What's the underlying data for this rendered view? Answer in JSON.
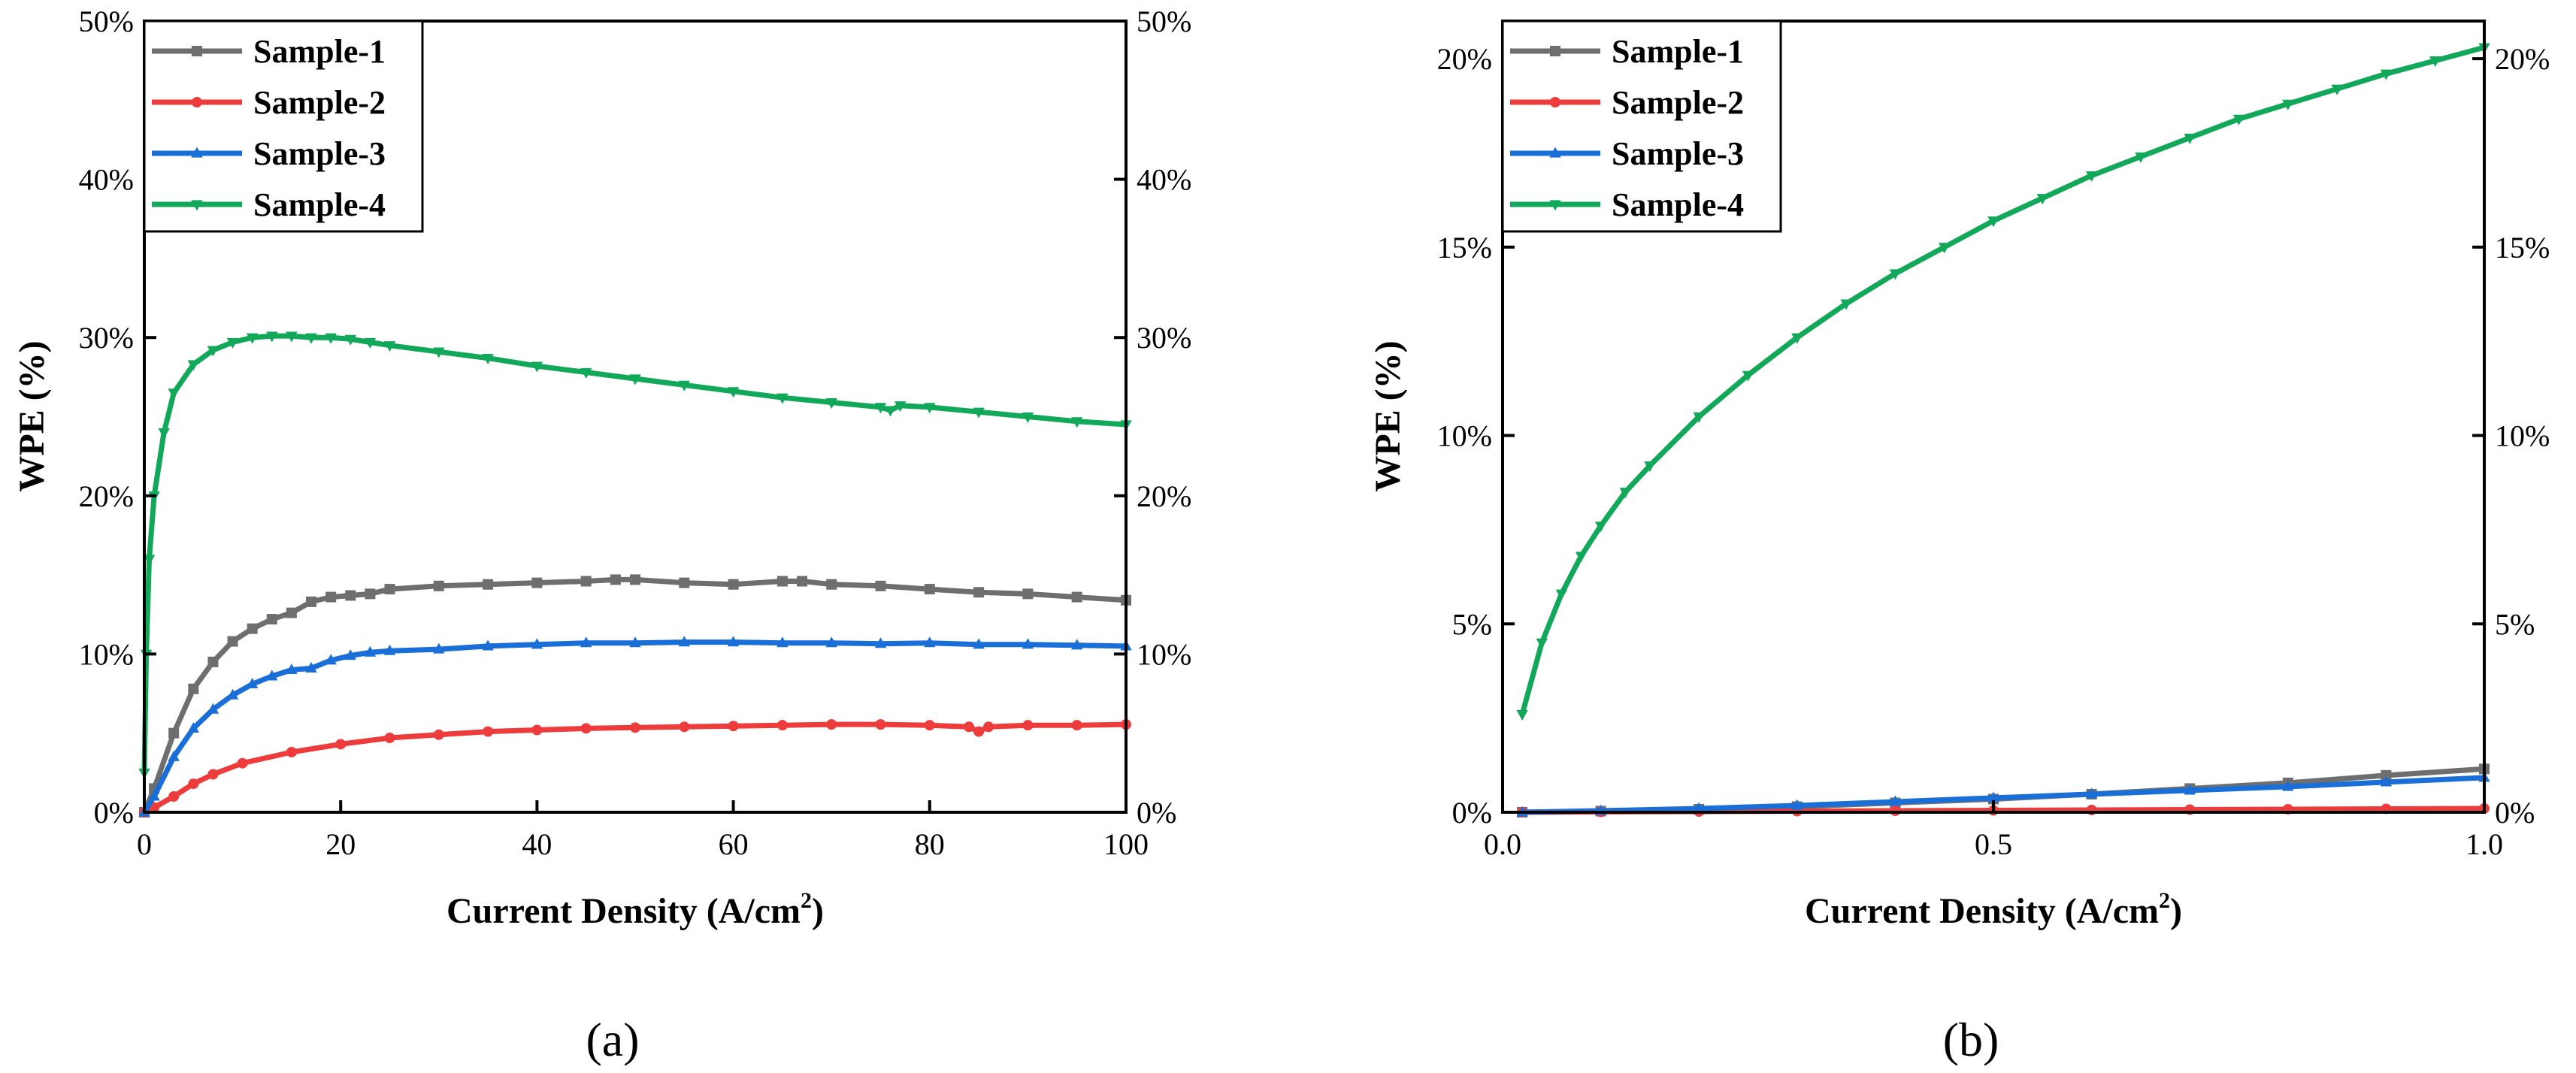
{
  "colors": {
    "Sample-1": "#6e6e6e",
    "Sample-2": "#ee3b3b",
    "Sample-3": "#1a6ed8",
    "Sample-4": "#12a85a",
    "axis": "#000000"
  },
  "chart_data": [
    {
      "panel": "(a)",
      "type": "line",
      "xlabel_main": "Current Density (A/cm",
      "xlabel_sup": "2",
      "xlabel_end": ")",
      "ylabel": "WPE (%)",
      "xlim": [
        0,
        100
      ],
      "ylim": [
        0,
        50
      ],
      "xticks": [
        0,
        20,
        40,
        60,
        80,
        100
      ],
      "xtick_labels": [
        "0",
        "20",
        "40",
        "60",
        "80",
        "100"
      ],
      "yticks": [
        0,
        10,
        20,
        30,
        40,
        50
      ],
      "ytick_labels": [
        "0%",
        "10%",
        "20%",
        "30%",
        "40%",
        "50%"
      ],
      "legend_position": "top-left",
      "series": [
        {
          "name": "Sample-1",
          "marker": "square",
          "x": [
            0,
            1,
            3,
            5,
            7,
            9,
            11,
            13,
            15,
            17,
            19,
            21,
            23,
            25,
            30,
            35,
            40,
            45,
            48,
            50,
            55,
            60,
            65,
            67,
            70,
            75,
            80,
            85,
            90,
            95,
            100
          ],
          "y": [
            0,
            1.5,
            5.0,
            7.8,
            9.5,
            10.8,
            11.6,
            12.2,
            12.6,
            13.3,
            13.6,
            13.7,
            13.8,
            14.1,
            14.3,
            14.4,
            14.5,
            14.6,
            14.7,
            14.7,
            14.5,
            14.4,
            14.6,
            14.6,
            14.4,
            14.3,
            14.1,
            13.9,
            13.8,
            13.6,
            13.4
          ]
        },
        {
          "name": "Sample-2",
          "marker": "circle",
          "x": [
            0,
            1,
            3,
            5,
            7,
            10,
            15,
            20,
            25,
            30,
            35,
            40,
            45,
            50,
            55,
            60,
            65,
            70,
            75,
            80,
            84,
            85,
            86,
            90,
            95,
            100
          ],
          "y": [
            0,
            0.3,
            1.0,
            1.8,
            2.4,
            3.1,
            3.8,
            4.3,
            4.7,
            4.9,
            5.1,
            5.2,
            5.3,
            5.35,
            5.4,
            5.45,
            5.5,
            5.55,
            5.55,
            5.5,
            5.4,
            5.1,
            5.4,
            5.5,
            5.5,
            5.55
          ]
        },
        {
          "name": "Sample-3",
          "marker": "triangle-up",
          "x": [
            0,
            1,
            3,
            5,
            7,
            9,
            11,
            13,
            15,
            17,
            19,
            21,
            23,
            25,
            30,
            35,
            40,
            45,
            50,
            55,
            60,
            65,
            70,
            75,
            80,
            85,
            90,
            95,
            100
          ],
          "y": [
            0,
            1.0,
            3.5,
            5.3,
            6.5,
            7.4,
            8.1,
            8.6,
            9.0,
            9.1,
            9.6,
            9.9,
            10.1,
            10.2,
            10.3,
            10.5,
            10.6,
            10.7,
            10.7,
            10.75,
            10.75,
            10.7,
            10.7,
            10.65,
            10.7,
            10.6,
            10.6,
            10.55,
            10.5
          ]
        },
        {
          "name": "Sample-4",
          "marker": "triangle-down",
          "x": [
            0,
            0.2,
            0.5,
            1,
            2,
            3,
            5,
            7,
            9,
            11,
            13,
            15,
            17,
            19,
            21,
            23,
            25,
            30,
            35,
            40,
            45,
            50,
            55,
            60,
            65,
            70,
            75,
            76,
            77,
            80,
            85,
            90,
            95,
            100
          ],
          "y": [
            2.5,
            10,
            16,
            20.0,
            24.0,
            26.5,
            28.3,
            29.2,
            29.7,
            30.0,
            30.1,
            30.1,
            30.0,
            30.0,
            29.9,
            29.7,
            29.5,
            29.1,
            28.7,
            28.2,
            27.8,
            27.4,
            27.0,
            26.6,
            26.2,
            25.9,
            25.6,
            25.4,
            25.7,
            25.6,
            25.3,
            25.0,
            24.7,
            24.5
          ]
        }
      ]
    },
    {
      "panel": "(b)",
      "type": "line",
      "xlabel_main": "Current Density (A/cm",
      "xlabel_sup": "2",
      "xlabel_end": ")",
      "ylabel": "WPE (%)",
      "xlim": [
        0,
        1.0
      ],
      "ylim": [
        0,
        21
      ],
      "xticks": [
        0,
        0.5,
        1.0
      ],
      "xtick_labels": [
        "0.0",
        "0.5",
        "1.0"
      ],
      "yticks": [
        0,
        5,
        10,
        15,
        20
      ],
      "ytick_labels": [
        "0%",
        "5%",
        "10%",
        "15%",
        "20%"
      ],
      "legend_position": "top-left",
      "series": [
        {
          "name": "Sample-1",
          "marker": "square",
          "x": [
            0.02,
            0.1,
            0.2,
            0.3,
            0.4,
            0.5,
            0.6,
            0.7,
            0.8,
            0.9,
            1.0
          ],
          "y": [
            0,
            0.03,
            0.08,
            0.15,
            0.25,
            0.35,
            0.48,
            0.63,
            0.78,
            0.98,
            1.15
          ]
        },
        {
          "name": "Sample-2",
          "marker": "circle",
          "x": [
            0.02,
            0.1,
            0.2,
            0.3,
            0.4,
            0.5,
            0.6,
            0.7,
            0.8,
            0.9,
            1.0
          ],
          "y": [
            0,
            0.01,
            0.02,
            0.03,
            0.04,
            0.05,
            0.06,
            0.07,
            0.08,
            0.09,
            0.1
          ]
        },
        {
          "name": "Sample-3",
          "marker": "triangle-up",
          "x": [
            0.02,
            0.1,
            0.2,
            0.3,
            0.4,
            0.5,
            0.6,
            0.7,
            0.8,
            0.9,
            1.0
          ],
          "y": [
            0,
            0.04,
            0.1,
            0.18,
            0.28,
            0.38,
            0.48,
            0.58,
            0.68,
            0.8,
            0.92
          ]
        },
        {
          "name": "Sample-4",
          "marker": "triangle-down",
          "x": [
            0.02,
            0.04,
            0.06,
            0.08,
            0.1,
            0.125,
            0.15,
            0.2,
            0.25,
            0.3,
            0.35,
            0.4,
            0.45,
            0.5,
            0.55,
            0.6,
            0.65,
            0.7,
            0.75,
            0.8,
            0.85,
            0.9,
            0.95,
            1.0
          ],
          "y": [
            2.6,
            4.5,
            5.8,
            6.8,
            7.6,
            8.5,
            9.2,
            10.5,
            11.6,
            12.6,
            13.5,
            14.3,
            15.0,
            15.7,
            16.3,
            16.9,
            17.4,
            17.9,
            18.4,
            18.8,
            19.2,
            19.6,
            19.95,
            20.3
          ]
        }
      ]
    }
  ]
}
